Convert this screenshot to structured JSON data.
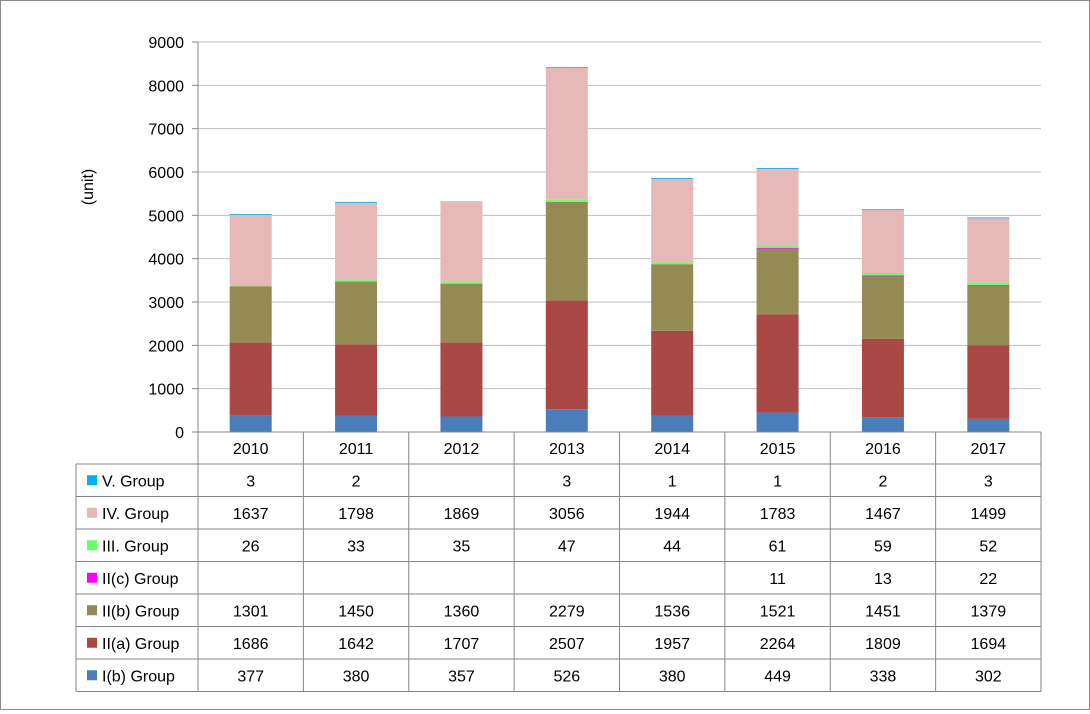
{
  "chart_data": {
    "type": "bar",
    "stacked": true,
    "ylabel": "(unit)",
    "ylim": [
      0,
      9000
    ],
    "yticks": [
      0,
      1000,
      2000,
      3000,
      4000,
      5000,
      6000,
      7000,
      8000,
      9000
    ],
    "grid": true,
    "legend": "data-table-left",
    "categories": [
      "2010",
      "2011",
      "2012",
      "2013",
      "2014",
      "2015",
      "2016",
      "2017"
    ],
    "series": [
      {
        "name": "I(b) Group",
        "color": "#4a7ebb",
        "values": [
          377,
          380,
          357,
          526,
          380,
          449,
          338,
          302
        ]
      },
      {
        "name": "II(a) Group",
        "color": "#a94845",
        "values": [
          1686,
          1642,
          1707,
          2507,
          1957,
          2264,
          1809,
          1694
        ]
      },
      {
        "name": "II(b) Group",
        "color": "#948a54",
        "values": [
          1301,
          1450,
          1360,
          2279,
          1536,
          1521,
          1451,
          1379
        ]
      },
      {
        "name": "II(c) Group",
        "color": "#ff00ff",
        "values": [
          null,
          null,
          null,
          null,
          null,
          11,
          13,
          22
        ]
      },
      {
        "name": "III. Group",
        "color": "#66ff66",
        "values": [
          26,
          33,
          35,
          47,
          44,
          61,
          59,
          52
        ]
      },
      {
        "name": "IV. Group",
        "color": "#e6b9b8",
        "values": [
          1637,
          1798,
          1869,
          3056,
          1944,
          1783,
          1467,
          1499
        ]
      },
      {
        "name": "V. Group",
        "color": "#00b0f0",
        "values": [
          3,
          2,
          null,
          3,
          1,
          1,
          2,
          3
        ]
      }
    ]
  }
}
